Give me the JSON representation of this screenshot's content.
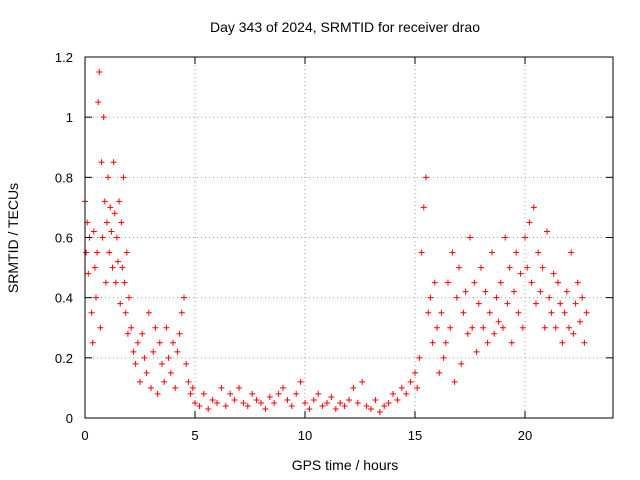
{
  "colors": {
    "series": "#ff0000",
    "axis": "#000000",
    "grid": "#a0a0a0"
  },
  "chart_data": {
    "type": "scatter",
    "marker": "plus",
    "title": "Day 343 of 2024, SRMTID for receiver drao",
    "xlabel": "GPS time / hours",
    "ylabel": "SRMTID / TECUs",
    "xlim": [
      0,
      24
    ],
    "ylim": [
      0,
      1.2
    ],
    "xticks": [
      0,
      5,
      10,
      15,
      20
    ],
    "xtick_labels": [
      "0",
      "5",
      "10",
      "15",
      "20"
    ],
    "yticks": [
      0,
      0.2,
      0.4,
      0.6,
      0.8,
      1.0,
      1.2
    ],
    "ytick_labels": [
      "0",
      "0.2",
      "0.4",
      "0.6",
      "0.8",
      "1",
      "1.2"
    ],
    "grid": true,
    "legend": "none",
    "series": [
      {
        "name": "SRMTID",
        "x": [
          0.0,
          0.05,
          0.1,
          0.15,
          0.2,
          0.3,
          0.35,
          0.4,
          0.45,
          0.5,
          0.55,
          0.6,
          0.65,
          0.7,
          0.75,
          0.8,
          0.85,
          0.9,
          0.95,
          1.0,
          1.05,
          1.1,
          1.15,
          1.2,
          1.25,
          1.3,
          1.35,
          1.4,
          1.45,
          1.5,
          1.55,
          1.6,
          1.65,
          1.7,
          1.75,
          1.8,
          1.85,
          1.9,
          1.95,
          2.0,
          2.1,
          2.2,
          2.3,
          2.4,
          2.5,
          2.6,
          2.7,
          2.8,
          2.9,
          3.0,
          3.1,
          3.2,
          3.3,
          3.4,
          3.5,
          3.6,
          3.7,
          3.8,
          3.9,
          4.0,
          4.1,
          4.2,
          4.3,
          4.4,
          4.5,
          4.6,
          4.7,
          4.8,
          4.9,
          5.0,
          5.2,
          5.4,
          5.6,
          5.8,
          6.0,
          6.2,
          6.4,
          6.6,
          6.8,
          7.0,
          7.2,
          7.4,
          7.6,
          7.8,
          8.0,
          8.2,
          8.4,
          8.6,
          8.8,
          9.0,
          9.2,
          9.4,
          9.6,
          9.8,
          10.0,
          10.2,
          10.4,
          10.6,
          10.8,
          11.0,
          11.2,
          11.4,
          11.6,
          11.8,
          12.0,
          12.2,
          12.4,
          12.6,
          12.8,
          13.0,
          13.2,
          13.4,
          13.6,
          13.8,
          14.0,
          14.2,
          14.4,
          14.6,
          14.8,
          15.0,
          15.1,
          15.2,
          15.3,
          15.4,
          15.5,
          15.6,
          15.7,
          15.8,
          15.9,
          16.0,
          16.1,
          16.2,
          16.3,
          16.4,
          16.5,
          16.6,
          16.7,
          16.8,
          16.9,
          17.0,
          17.1,
          17.2,
          17.3,
          17.4,
          17.5,
          17.6,
          17.7,
          17.8,
          17.9,
          18.0,
          18.1,
          18.2,
          18.3,
          18.4,
          18.5,
          18.6,
          18.7,
          18.8,
          18.9,
          19.0,
          19.1,
          19.2,
          19.3,
          19.4,
          19.5,
          19.6,
          19.7,
          19.8,
          19.9,
          20.0,
          20.1,
          20.2,
          20.3,
          20.4,
          20.5,
          20.6,
          20.7,
          20.8,
          20.9,
          21.0,
          21.1,
          21.2,
          21.3,
          21.4,
          21.5,
          21.6,
          21.7,
          21.8,
          21.9,
          22.0,
          22.1,
          22.2,
          22.3,
          22.4,
          22.5,
          22.6,
          22.7,
          22.8
        ],
        "y": [
          0.72,
          0.55,
          0.65,
          0.48,
          0.6,
          0.35,
          0.25,
          0.62,
          0.5,
          0.4,
          0.55,
          1.05,
          1.15,
          0.3,
          0.85,
          0.6,
          1.0,
          0.72,
          0.45,
          0.65,
          0.8,
          0.55,
          0.7,
          0.62,
          0.5,
          0.85,
          0.68,
          0.45,
          0.6,
          0.52,
          0.72,
          0.38,
          0.65,
          0.5,
          0.8,
          0.45,
          0.35,
          0.55,
          0.28,
          0.4,
          0.3,
          0.22,
          0.18,
          0.25,
          0.12,
          0.28,
          0.2,
          0.15,
          0.35,
          0.1,
          0.22,
          0.3,
          0.08,
          0.25,
          0.18,
          0.12,
          0.3,
          0.2,
          0.15,
          0.25,
          0.1,
          0.22,
          0.28,
          0.35,
          0.4,
          0.18,
          0.12,
          0.08,
          0.1,
          0.05,
          0.04,
          0.08,
          0.03,
          0.06,
          0.05,
          0.1,
          0.04,
          0.08,
          0.06,
          0.1,
          0.05,
          0.04,
          0.08,
          0.06,
          0.05,
          0.03,
          0.07,
          0.05,
          0.08,
          0.1,
          0.06,
          0.04,
          0.08,
          0.12,
          0.05,
          0.03,
          0.06,
          0.08,
          0.04,
          0.05,
          0.07,
          0.03,
          0.05,
          0.04,
          0.06,
          0.1,
          0.05,
          0.12,
          0.04,
          0.03,
          0.06,
          0.02,
          0.04,
          0.05,
          0.08,
          0.06,
          0.1,
          0.08,
          0.12,
          0.15,
          0.1,
          0.2,
          0.55,
          0.7,
          0.8,
          0.35,
          0.4,
          0.25,
          0.45,
          0.3,
          0.15,
          0.35,
          0.2,
          0.25,
          0.45,
          0.3,
          0.55,
          0.12,
          0.4,
          0.5,
          0.18,
          0.35,
          0.42,
          0.28,
          0.6,
          0.3,
          0.45,
          0.22,
          0.38,
          0.5,
          0.3,
          0.42,
          0.25,
          0.35,
          0.55,
          0.28,
          0.4,
          0.32,
          0.45,
          0.3,
          0.6,
          0.38,
          0.5,
          0.25,
          0.42,
          0.55,
          0.35,
          0.48,
          0.3,
          0.6,
          0.5,
          0.65,
          0.45,
          0.7,
          0.38,
          0.55,
          0.42,
          0.5,
          0.3,
          0.62,
          0.4,
          0.35,
          0.48,
          0.3,
          0.45,
          0.38,
          0.25,
          0.35,
          0.42,
          0.3,
          0.55,
          0.28,
          0.38,
          0.45,
          0.32,
          0.4,
          0.25,
          0.35
        ]
      }
    ]
  }
}
